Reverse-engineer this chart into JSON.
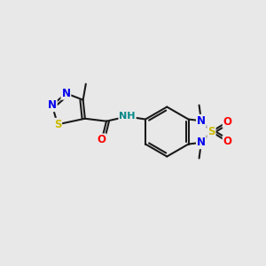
{
  "bg_color": "#e8e8e8",
  "bond_color": "#1a1a1a",
  "bond_width": 1.5,
  "atom_colors": {
    "N": "#0000ee",
    "S": "#ccbb00",
    "O": "#ff0000",
    "NH": "#008888",
    "C": "#1a1a1a"
  },
  "scale": 1.0
}
